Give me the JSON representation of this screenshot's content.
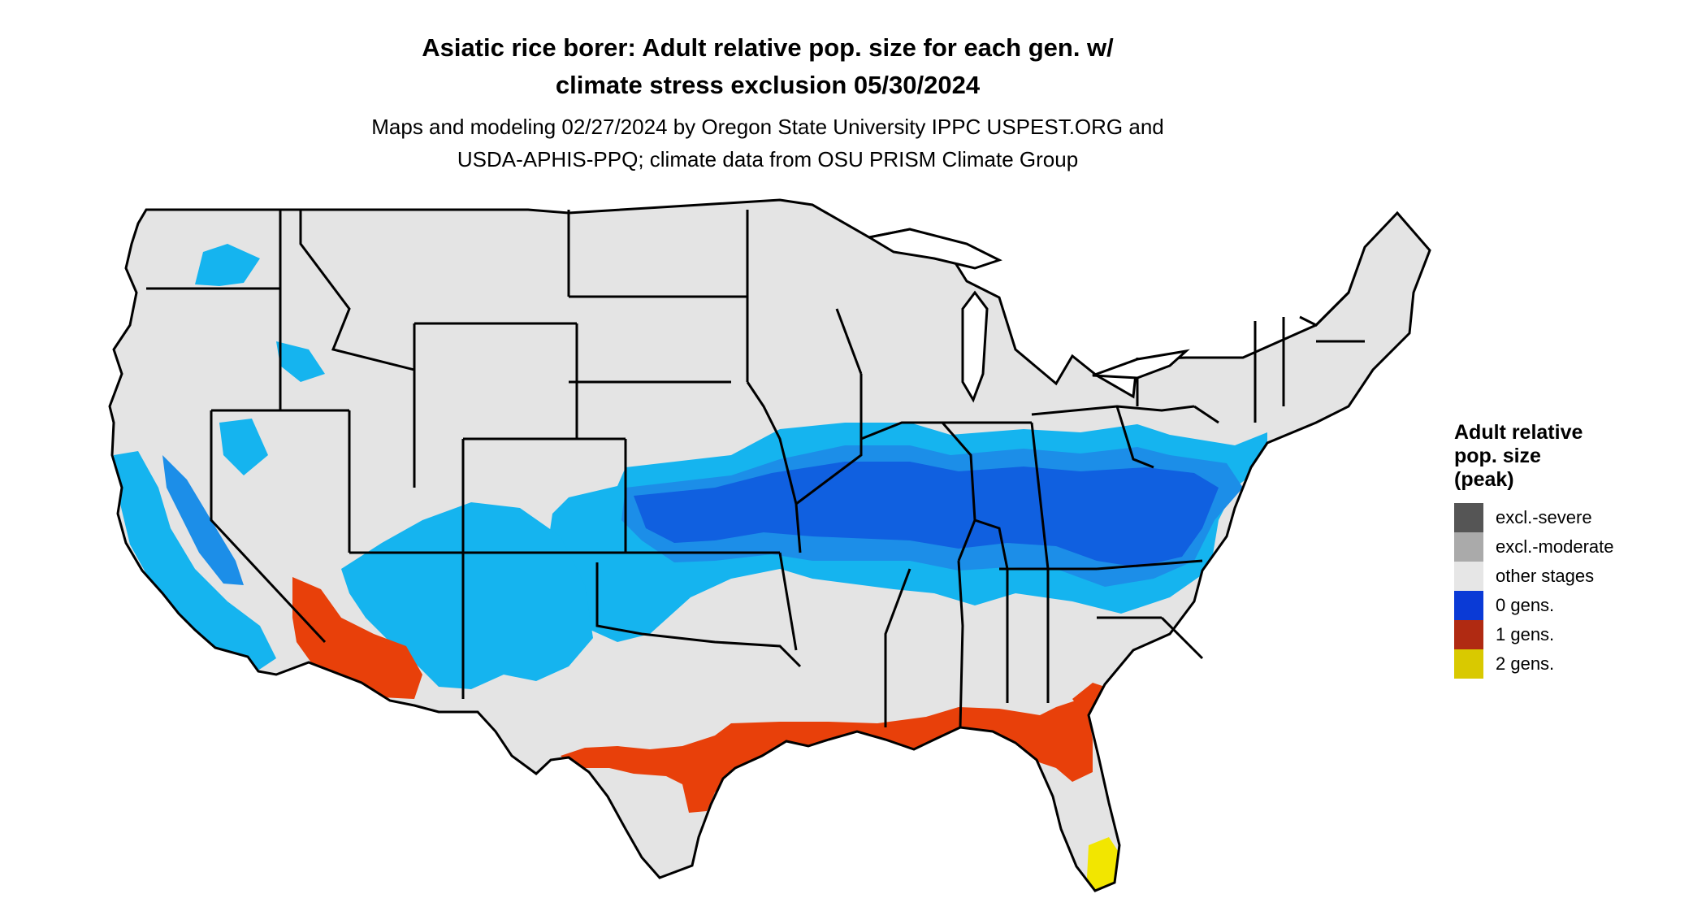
{
  "title": {
    "line1": "Asiatic rice borer: Adult relative pop. size for each gen. w/",
    "line2": "climate stress exclusion 05/30/2024"
  },
  "subtitle": {
    "line1": "Maps and modeling 02/27/2024 by Oregon State University IPPC USPEST.ORG and",
    "line2": "USDA-APHIS-PPQ; climate data from OSU PRISM Climate Group"
  },
  "legend": {
    "title_lines": [
      "Adult relative",
      "pop. size",
      "(peak)"
    ],
    "items": [
      {
        "label": "excl.-severe",
        "color": "#555555"
      },
      {
        "label": "excl.-moderate",
        "color": "#aaaaaa"
      },
      {
        "label": "other stages",
        "color": "#e6e6e6"
      },
      {
        "label": "0 gens.",
        "color": "#0a3ad6"
      },
      {
        "label": "1 gens.",
        "color": "#b02a12"
      },
      {
        "label": "2 gens.",
        "color": "#d9c900"
      }
    ]
  },
  "map_colors": {
    "land": "#e4e4e4",
    "light_blue": "#15b4ef",
    "mid_blue": "#1c8ee8",
    "dark_blue": "#1060e0",
    "orange_red": "#e8400a",
    "yellow": "#f2e600",
    "border": "#000000"
  }
}
